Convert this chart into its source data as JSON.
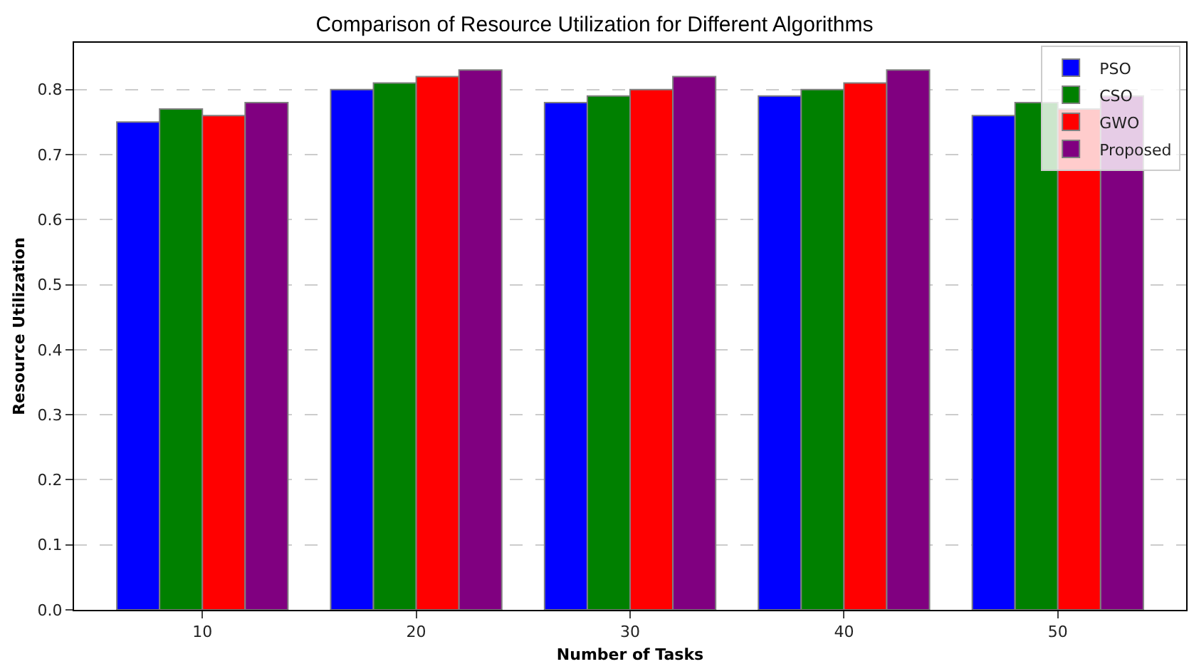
{
  "chart_data": {
    "type": "bar",
    "title": "Comparison of Resource Utilization for Different Algorithms",
    "xlabel": "Number of Tasks",
    "ylabel": "Resource Utilization",
    "categories": [
      "10",
      "20",
      "30",
      "40",
      "50"
    ],
    "series": [
      {
        "name": "PSO",
        "color": "#0000ff",
        "values": [
          0.75,
          0.8,
          0.78,
          0.79,
          0.76
        ]
      },
      {
        "name": "CSO",
        "color": "#008000",
        "values": [
          0.77,
          0.81,
          0.79,
          0.8,
          0.78
        ]
      },
      {
        "name": "GWO",
        "color": "#ff0000",
        "values": [
          0.76,
          0.82,
          0.8,
          0.81,
          0.77
        ]
      },
      {
        "name": "Proposed",
        "color": "#800080",
        "values": [
          0.78,
          0.83,
          0.82,
          0.83,
          0.79
        ]
      }
    ],
    "ylim": [
      0,
      0.872
    ],
    "yticks": [
      {
        "value": 0,
        "label": "0.0"
      },
      0.1,
      0.2,
      0.3,
      0.4,
      0.5,
      0.6,
      0.7,
      0.8
    ],
    "grid": "y",
    "legend": "top right"
  }
}
